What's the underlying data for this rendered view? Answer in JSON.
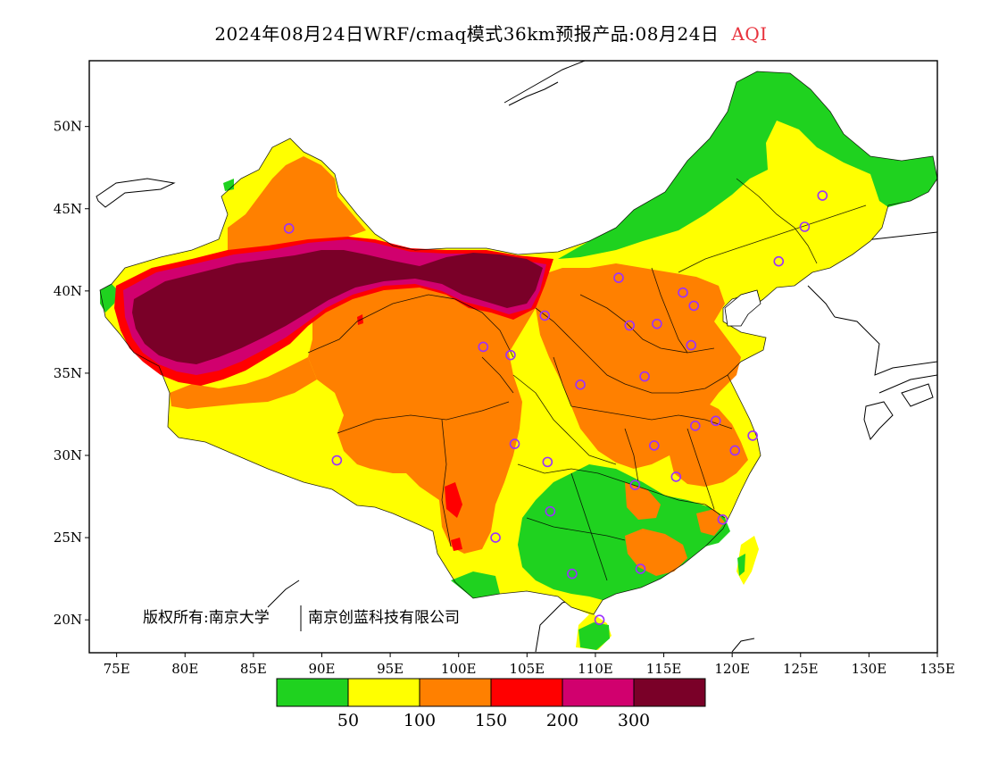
{
  "title": {
    "text": "2024年08月24日WRF/cmaq模式36km预报产品:08月24日",
    "variable": "AQI",
    "variable_color": "#e8323c"
  },
  "map": {
    "lon_range": [
      73,
      135
    ],
    "lat_range": [
      18,
      54
    ],
    "lon_ticks": [
      "75E",
      "80E",
      "85E",
      "90E",
      "95E",
      "100E",
      "105E",
      "110E",
      "115E",
      "120E",
      "125E",
      "130E",
      "135E"
    ],
    "lat_ticks": [
      "20N",
      "25N",
      "30N",
      "35N",
      "40N",
      "45N",
      "50N"
    ]
  },
  "colors": {
    "good": "#1fd21f",
    "moderate": "#ffff00",
    "usg": "#ff8000",
    "unhealthy": "#ff0000",
    "very_unhealthy": "#d1006e",
    "hazardous": "#7a0028",
    "station_ring": "#9b30ff"
  },
  "legend": {
    "colors": [
      "#1fd21f",
      "#ffff00",
      "#ff8000",
      "#ff0000",
      "#d1006e",
      "#7a0028"
    ],
    "labels": [
      "50",
      "100",
      "150",
      "200",
      "300"
    ]
  },
  "copyright": {
    "left": "版权所有:南京大学",
    "right": "南京创蓝科技有限公司"
  },
  "stations": [
    [
      87.6,
      43.8
    ],
    [
      91.1,
      29.7
    ],
    [
      101.8,
      36.6
    ],
    [
      103.8,
      36.1
    ],
    [
      106.3,
      38.5
    ],
    [
      111.7,
      40.8
    ],
    [
      116.4,
      39.9
    ],
    [
      117.2,
      39.1
    ],
    [
      114.5,
      38.0
    ],
    [
      112.5,
      37.9
    ],
    [
      117.0,
      36.7
    ],
    [
      113.6,
      34.8
    ],
    [
      108.9,
      34.3
    ],
    [
      104.1,
      30.7
    ],
    [
      106.5,
      29.6
    ],
    [
      106.7,
      26.6
    ],
    [
      102.7,
      25.0
    ],
    [
      108.3,
      22.8
    ],
    [
      113.3,
      23.1
    ],
    [
      110.3,
      20.0
    ],
    [
      114.3,
      30.6
    ],
    [
      112.9,
      28.2
    ],
    [
      115.9,
      28.7
    ],
    [
      117.3,
      31.8
    ],
    [
      118.8,
      32.1
    ],
    [
      120.2,
      30.3
    ],
    [
      121.5,
      31.2
    ],
    [
      119.3,
      26.1
    ],
    [
      126.6,
      45.8
    ],
    [
      125.3,
      43.9
    ],
    [
      123.4,
      41.8
    ]
  ]
}
